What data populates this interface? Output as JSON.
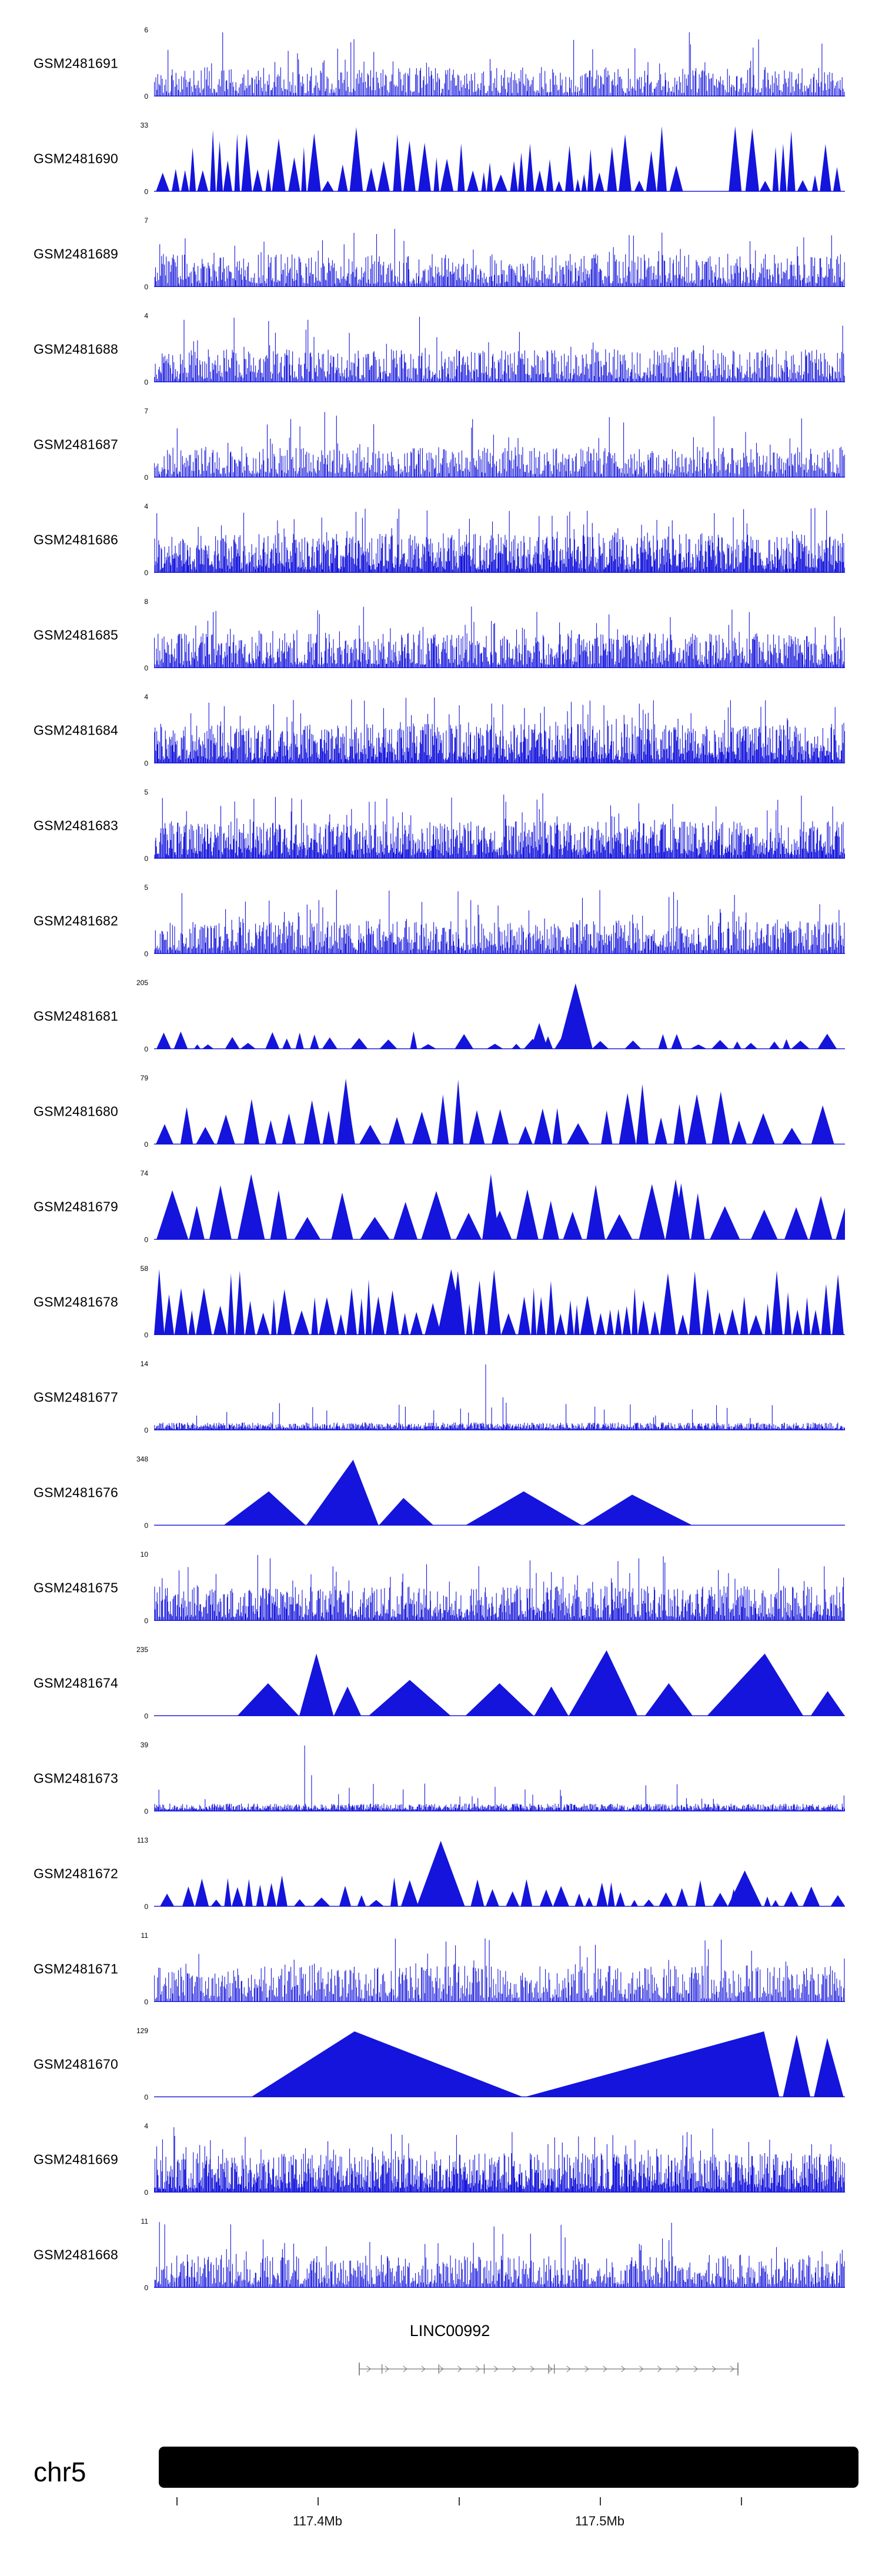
{
  "chart_data": {
    "type": "area",
    "title": "",
    "color": "#1414dc",
    "tracks": [
      {
        "name": "GSM2481691",
        "ymax": "6",
        "ymin": "0",
        "style": "spikes",
        "seed": 101,
        "n": 620,
        "tall": 0.045,
        "hi": 0.4
      },
      {
        "name": "GSM2481690",
        "ymax": "33",
        "ymin": "0",
        "style": "tridense",
        "seed": 202,
        "notch": [
          0.75,
          0.83
        ]
      },
      {
        "name": "GSM2481689",
        "ymax": "7",
        "ymin": "0",
        "style": "spikes",
        "seed": 303,
        "n": 700,
        "tall": 0.05,
        "hi": 0.45
      },
      {
        "name": "GSM2481688",
        "ymax": "4",
        "ymin": "0",
        "style": "spikes",
        "seed": 404,
        "n": 720,
        "tall": 0.05,
        "hi": 0.45
      },
      {
        "name": "GSM2481687",
        "ymax": "7",
        "ymin": "0",
        "style": "spikes",
        "seed": 505,
        "n": 650,
        "tall": 0.05,
        "hi": 0.42
      },
      {
        "name": "GSM2481686",
        "ymax": "4",
        "ymin": "0",
        "style": "spikes",
        "seed": 606,
        "n": 950,
        "tall": 0.08,
        "hi": 0.55
      },
      {
        "name": "GSM2481685",
        "ymax": "8",
        "ymin": "0",
        "style": "spikes",
        "seed": 707,
        "n": 800,
        "tall": 0.06,
        "hi": 0.48
      },
      {
        "name": "GSM2481684",
        "ymax": "4",
        "ymin": "0",
        "style": "spikes",
        "seed": 808,
        "n": 950,
        "tall": 0.08,
        "hi": 0.55
      },
      {
        "name": "GSM2481683",
        "ymax": "5",
        "ymin": "0",
        "style": "spikes",
        "seed": 909,
        "n": 930,
        "tall": 0.07,
        "hi": 0.52
      },
      {
        "name": "GSM2481682",
        "ymax": "5",
        "ymin": "0",
        "style": "spikes",
        "seed": 111,
        "n": 760,
        "tall": 0.05,
        "hi": 0.45,
        "spikes_extra": [
          [
            0.44,
            0.95
          ],
          [
            0.62,
            0.85
          ]
        ]
      },
      {
        "name": "GSM2481681",
        "ymax": "205",
        "ymin": "0",
        "style": "trismall",
        "seed": 222,
        "extra": [
          [
            0.585,
            0.635,
            0.5,
            1.0
          ],
          [
            0.545,
            0.57,
            0.5,
            0.4
          ]
        ]
      },
      {
        "name": "GSM2481680",
        "ymax": "79",
        "ymin": "0",
        "style": "trimed",
        "seed": 333,
        "extra": [
          [
            0.265,
            0.29,
            0.5,
            1.0
          ]
        ]
      },
      {
        "name": "GSM2481679",
        "ymax": "74",
        "ymin": "0",
        "style": "trimed2",
        "seed": 444,
        "extra": [
          [
            0.475,
            0.5,
            0.5,
            1.0
          ],
          [
            0.74,
            0.77,
            0.5,
            0.92
          ]
        ]
      },
      {
        "name": "GSM2481678",
        "ymax": "58",
        "ymin": "0",
        "style": "tridense2",
        "seed": 555,
        "extra": [
          [
            0.0,
            0.015,
            0.5,
            1.0
          ],
          [
            0.41,
            0.45,
            0.5,
            1.0
          ]
        ]
      },
      {
        "name": "GSM2481677",
        "ymax": "14",
        "ymin": "0",
        "style": "spikeslow",
        "seed": 666,
        "spikes_extra": [
          [
            0.48,
            1.0
          ],
          [
            0.505,
            0.5
          ],
          [
            0.25,
            0.3
          ]
        ]
      },
      {
        "name": "GSM2481676",
        "ymax": "348",
        "ymin": "0",
        "style": "peaks",
        "peaks": [
          [
            0.1,
            0.22,
            0.55,
            0.52
          ],
          [
            0.22,
            0.325,
            0.65,
            1.0
          ],
          [
            0.325,
            0.405,
            0.45,
            0.42
          ],
          [
            0.45,
            0.62,
            0.5,
            0.52
          ],
          [
            0.62,
            0.78,
            0.45,
            0.47
          ]
        ]
      },
      {
        "name": "GSM2481675",
        "ymax": "10",
        "ymin": "0",
        "style": "spikes",
        "seed": 777,
        "n": 820,
        "tall": 0.05,
        "hi": 0.48,
        "spikes_extra": [
          [
            0.15,
            1.0
          ],
          [
            0.168,
            0.95
          ]
        ]
      },
      {
        "name": "GSM2481674",
        "ymax": "235",
        "ymin": "0",
        "style": "peaks",
        "peaks": [
          [
            0.12,
            0.21,
            0.5,
            0.5
          ],
          [
            0.21,
            0.26,
            0.5,
            0.95
          ],
          [
            0.26,
            0.3,
            0.5,
            0.45
          ],
          [
            0.31,
            0.43,
            0.5,
            0.55
          ],
          [
            0.45,
            0.55,
            0.5,
            0.5
          ],
          [
            0.55,
            0.6,
            0.5,
            0.45
          ],
          [
            0.6,
            0.7,
            0.55,
            1.0
          ],
          [
            0.71,
            0.78,
            0.5,
            0.5
          ],
          [
            0.8,
            0.94,
            0.6,
            0.95
          ],
          [
            0.95,
            1.0,
            0.5,
            0.38
          ]
        ]
      },
      {
        "name": "GSM2481673",
        "ymax": "39",
        "ymin": "0",
        "style": "spikeslow",
        "seed": 888,
        "spikes_extra": [
          [
            0.218,
            1.0
          ],
          [
            0.228,
            0.55
          ]
        ]
      },
      {
        "name": "GSM2481672",
        "ymax": "113",
        "ymin": "0",
        "style": "trismall2",
        "seed": 999,
        "extra": [
          [
            0.38,
            0.45,
            0.5,
            1.0
          ],
          [
            0.83,
            0.88,
            0.5,
            0.55
          ]
        ]
      },
      {
        "name": "GSM2481671",
        "ymax": "11",
        "ymin": "0",
        "style": "spikes",
        "seed": 121,
        "n": 640,
        "tall": 0.07,
        "hi": 0.5
      },
      {
        "name": "GSM2481670",
        "ymax": "129",
        "ymin": "0",
        "style": "peaks",
        "peaks": [
          [
            0.14,
            0.535,
            0.38,
            1.0
          ],
          [
            0.535,
            0.905,
            0.94,
            1.0
          ],
          [
            0.91,
            0.95,
            0.5,
            0.95
          ],
          [
            0.955,
            0.998,
            0.45,
            0.9
          ]
        ]
      },
      {
        "name": "GSM2481669",
        "ymax": "4",
        "ymin": "0",
        "style": "spikes",
        "seed": 131,
        "n": 960,
        "tall": 0.08,
        "hi": 0.55
      },
      {
        "name": "GSM2481668",
        "ymax": "11",
        "ymin": "0",
        "style": "spikes",
        "seed": 141,
        "n": 680,
        "tall": 0.05,
        "hi": 0.45
      }
    ],
    "gene": {
      "name": "LINC00992",
      "strand": "right",
      "exon_ticks": [
        0,
        0.06,
        0.21,
        0.33,
        0.5,
        0.515,
        1.0
      ],
      "chevron_count": 21
    },
    "chromosome": {
      "name": "chr5"
    },
    "ruler": {
      "ticks": [
        {
          "f": 0.0252,
          "label": ""
        },
        {
          "f": 0.2269,
          "label": "117.4Mb"
        },
        {
          "f": 0.4286,
          "label": ""
        },
        {
          "f": 0.6303,
          "label": "117.5Mb"
        },
        {
          "f": 0.8319,
          "label": ""
        }
      ]
    }
  }
}
